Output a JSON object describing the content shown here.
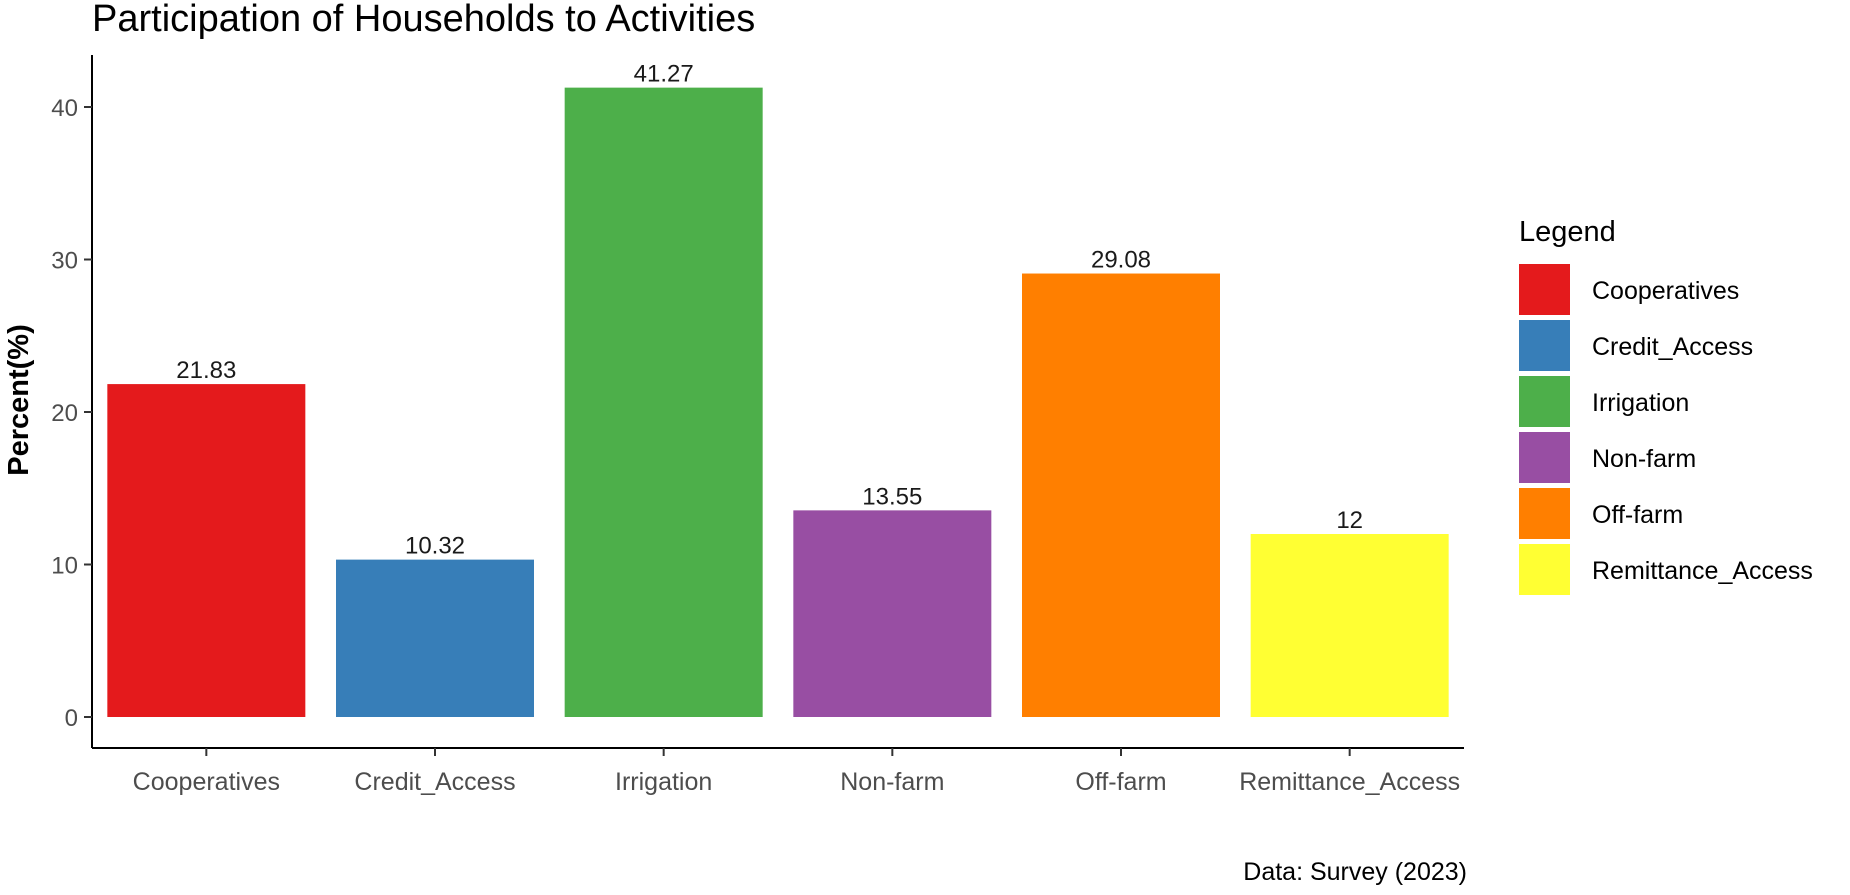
{
  "chart_data": {
    "type": "bar",
    "title": "Participation of Households to Activities",
    "xlabel": "",
    "ylabel": "Percent(%)",
    "caption": "Data: Survey (2023)",
    "categories": [
      "Cooperatives",
      "Credit_Access",
      "Irrigation",
      "Non-farm",
      "Off-farm",
      "Remittance_Access"
    ],
    "values": [
      21.83,
      10.32,
      41.27,
      13.55,
      29.08,
      12
    ],
    "data_labels": [
      "21.83",
      "10.32",
      "41.27",
      "13.55",
      "29.08",
      "12"
    ],
    "colors": [
      "#E41A1C",
      "#377EB8",
      "#4DAF4A",
      "#984EA3",
      "#FF7F00",
      "#FFFF33"
    ],
    "ylim": [
      0,
      45
    ],
    "yticks": [
      0,
      10,
      20,
      30,
      40
    ],
    "ytick_labels": [
      "0",
      "10",
      "20",
      "30",
      "40"
    ],
    "grid": false,
    "legend": {
      "title": "Legend",
      "position": "right",
      "entries": [
        "Cooperatives",
        "Credit_Access",
        "Irrigation",
        "Non-farm",
        "Off-farm",
        "Remittance_Access"
      ]
    }
  }
}
